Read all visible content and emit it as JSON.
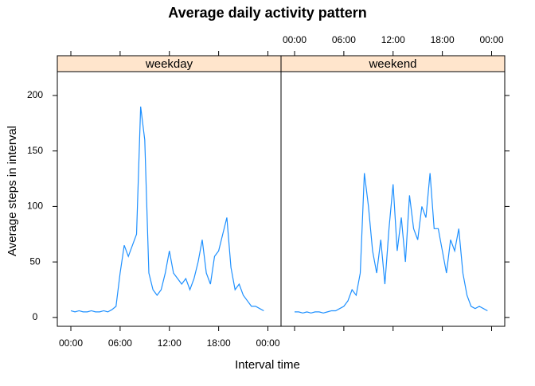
{
  "chart_data": {
    "type": "line",
    "title": "Average daily activity pattern",
    "x_label": "Interval time",
    "y_label": "Average steps in interval",
    "x": [
      0,
      0.5,
      1,
      1.5,
      2,
      2.5,
      3,
      3.5,
      4,
      4.5,
      5,
      5.5,
      6,
      6.5,
      7,
      7.5,
      8,
      8.5,
      9,
      9.5,
      10,
      10.5,
      11,
      11.5,
      12,
      12.5,
      13,
      13.5,
      14,
      14.5,
      15,
      15.5,
      16,
      16.5,
      17,
      17.5,
      18,
      18.5,
      19,
      19.5,
      20,
      20.5,
      21,
      21.5,
      22,
      22.5,
      23,
      23.5
    ],
    "series": [
      {
        "name": "weekday",
        "color": "#1e90ff",
        "values": [
          6,
          5,
          6,
          5,
          5,
          6,
          5,
          5,
          6,
          5,
          7,
          10,
          40,
          65,
          55,
          65,
          75,
          190,
          160,
          40,
          25,
          20,
          25,
          40,
          60,
          40,
          35,
          30,
          35,
          25,
          35,
          50,
          70,
          40,
          30,
          55,
          60,
          75,
          90,
          45,
          25,
          30,
          20,
          15,
          10,
          10,
          8,
          6
        ]
      },
      {
        "name": "weekend",
        "color": "#1e90ff",
        "values": [
          5,
          5,
          4,
          5,
          4,
          5,
          5,
          4,
          5,
          6,
          6,
          8,
          10,
          15,
          25,
          20,
          40,
          130,
          100,
          60,
          40,
          70,
          30,
          80,
          120,
          60,
          90,
          50,
          110,
          80,
          70,
          100,
          90,
          130,
          80,
          80,
          60,
          40,
          70,
          60,
          80,
          40,
          20,
          10,
          8,
          10,
          8,
          6
        ]
      }
    ],
    "xlim": [
      -1.65,
      25.6
    ],
    "ylim": [
      -8,
      221.5
    ],
    "xticks": [
      {
        "value": 0,
        "label": "00:00"
      },
      {
        "value": 6,
        "label": "06:00"
      },
      {
        "value": 12,
        "label": "12:00"
      },
      {
        "value": 18,
        "label": "18:00"
      },
      {
        "value": 24,
        "label": "00:00"
      }
    ],
    "yticks": [
      0,
      50,
      100,
      150,
      200
    ]
  }
}
